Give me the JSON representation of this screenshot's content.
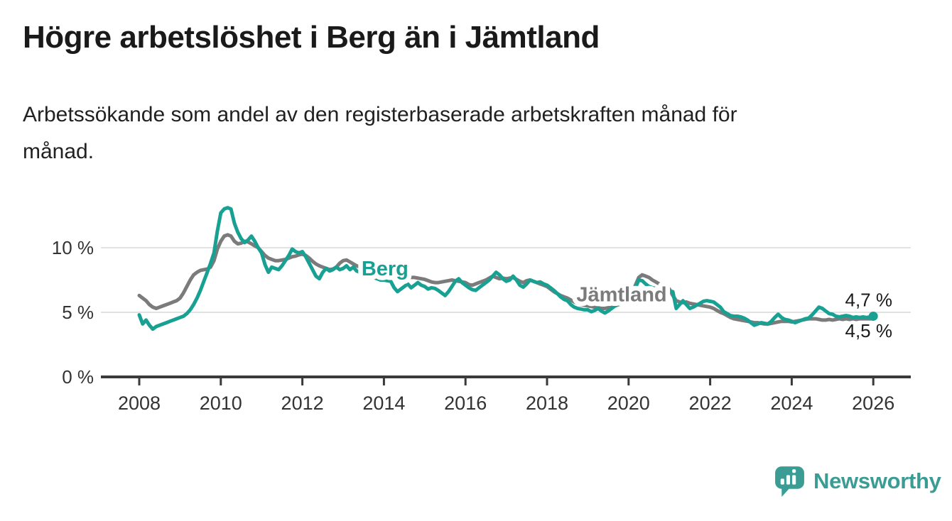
{
  "title": "Högre arbetslöshet i Berg än i Jämtland",
  "subtitle": "Arbetssökande som andel av den registerbaserade arbetskraften månad för månad.",
  "branding": {
    "logo_text": "Newsworthy",
    "logo_icon": "bar-chart-speech-bubble-icon",
    "logo_color": "#3b9c94"
  },
  "chart_data": {
    "type": "line",
    "title": "Högre arbetslöshet i Berg än i Jämtland",
    "subtitle": "Arbetssökande som andel av den registerbaserade arbetskraften månad för månad.",
    "x_unit": "year",
    "y_unit": "percent",
    "frequency": "monthly",
    "x_start_year": 2008,
    "x_end_year": 2026,
    "ylim": [
      0,
      13.8
    ],
    "grid": "horizontal",
    "x_tick_labels": [
      "2008",
      "2010",
      "2012",
      "2014",
      "2016",
      "2018",
      "2020",
      "2022",
      "2024",
      "2026"
    ],
    "y_ticks": [
      {
        "value": 0,
        "label": "0 %"
      },
      {
        "value": 5,
        "label": "5 %"
      },
      {
        "value": 10,
        "label": "10 %"
      }
    ],
    "colors": {
      "grid": "#d8d8d8",
      "axis": "#3a3a3a",
      "axis_text": "#333333",
      "annotation_text": "#1a1a1a"
    },
    "series": [
      {
        "name": "Jämtland",
        "key": "jamtland",
        "color": "#7b7b7b",
        "end_label": "4,5 %",
        "end_dot": false,
        "label_at": {
          "x": 2018.72,
          "y": 5.85
        },
        "values": [
          6.3,
          6.1,
          5.9,
          5.6,
          5.4,
          5.3,
          5.4,
          5.5,
          5.6,
          5.7,
          5.8,
          5.9,
          6.1,
          6.5,
          7.0,
          7.5,
          7.9,
          8.1,
          8.25,
          8.3,
          8.35,
          8.5,
          9.0,
          9.9,
          10.5,
          10.9,
          11.0,
          10.9,
          10.5,
          10.3,
          10.35,
          10.5,
          10.45,
          10.3,
          10.15,
          10.0,
          9.7,
          9.4,
          9.2,
          9.1,
          9.0,
          9.0,
          9.05,
          9.1,
          9.2,
          9.3,
          9.35,
          9.45,
          9.5,
          9.4,
          9.2,
          8.95,
          8.75,
          8.6,
          8.5,
          8.4,
          8.3,
          8.35,
          8.5,
          8.8,
          9.0,
          9.05,
          8.9,
          8.75,
          8.6,
          8.5,
          8.4,
          8.3,
          8.2,
          8.1,
          8.0,
          7.9,
          7.8,
          7.75,
          7.7,
          7.8,
          7.9,
          7.85,
          7.8,
          7.75,
          7.7,
          7.7,
          7.65,
          7.6,
          7.55,
          7.45,
          7.35,
          7.3,
          7.3,
          7.35,
          7.4,
          7.45,
          7.5,
          7.45,
          7.4,
          7.35,
          7.3,
          7.15,
          7.1,
          7.2,
          7.3,
          7.4,
          7.5,
          7.65,
          7.8,
          7.7,
          7.6,
          7.65,
          7.6,
          7.65,
          7.7,
          7.55,
          7.4,
          7.3,
          7.45,
          7.5,
          7.4,
          7.3,
          7.2,
          7.1,
          7.0,
          6.8,
          6.6,
          6.45,
          6.3,
          6.2,
          6.1,
          5.95,
          5.8,
          5.7,
          5.6,
          5.55,
          5.5,
          5.45,
          5.4,
          5.35,
          5.3,
          5.3,
          5.35,
          5.4,
          5.5,
          5.6,
          5.7,
          5.8,
          6.0,
          6.4,
          7.1,
          7.7,
          7.9,
          7.8,
          7.7,
          7.5,
          7.35,
          7.2,
          7.1,
          6.95,
          6.8,
          6.3,
          5.9,
          5.8,
          5.75,
          5.8,
          5.7,
          5.65,
          5.6,
          5.55,
          5.5,
          5.45,
          5.4,
          5.3,
          5.15,
          5.0,
          4.9,
          4.75,
          4.6,
          4.5,
          4.45,
          4.4,
          4.35,
          4.3,
          4.25,
          4.2,
          4.2,
          4.15,
          4.1,
          4.1,
          4.15,
          4.2,
          4.25,
          4.3,
          4.3,
          4.3,
          4.25,
          4.3,
          4.35,
          4.4,
          4.45,
          4.5,
          4.5,
          4.5,
          4.45,
          4.4,
          4.4,
          4.45,
          4.4,
          4.45,
          4.5,
          4.45,
          4.5,
          4.45,
          4.5,
          4.45,
          4.5,
          4.5,
          4.5,
          4.5,
          4.5
        ]
      },
      {
        "name": "Berg",
        "key": "berg",
        "color": "#18a193",
        "end_label": "4,7 %",
        "end_dot": true,
        "label_at": {
          "x": 2013.45,
          "y": 7.85
        },
        "values": [
          4.8,
          4.1,
          4.4,
          4.0,
          3.7,
          3.9,
          4.0,
          4.1,
          4.2,
          4.3,
          4.4,
          4.5,
          4.6,
          4.7,
          4.9,
          5.2,
          5.6,
          6.1,
          6.7,
          7.4,
          8.1,
          8.8,
          9.6,
          11.3,
          12.7,
          13.0,
          13.1,
          13.0,
          11.9,
          11.2,
          10.7,
          10.4,
          10.6,
          10.9,
          10.5,
          10.0,
          9.6,
          8.7,
          8.1,
          8.5,
          8.4,
          8.3,
          8.6,
          9.0,
          9.4,
          9.9,
          9.7,
          9.6,
          9.7,
          9.3,
          8.8,
          8.3,
          7.8,
          7.6,
          8.1,
          8.4,
          8.2,
          8.3,
          8.5,
          8.3,
          8.4,
          8.6,
          8.3,
          8.5,
          8.2,
          8.1,
          8.0,
          7.9,
          7.8,
          7.7,
          7.6,
          7.5,
          7.5,
          7.45,
          7.4,
          6.9,
          6.6,
          6.8,
          7.0,
          7.2,
          6.9,
          7.1,
          7.3,
          7.1,
          7.0,
          6.8,
          6.9,
          6.85,
          6.7,
          6.5,
          6.3,
          6.6,
          7.0,
          7.4,
          7.6,
          7.3,
          7.1,
          6.9,
          6.75,
          6.7,
          6.9,
          7.1,
          7.3,
          7.5,
          7.8,
          8.1,
          7.9,
          7.6,
          7.4,
          7.5,
          7.8,
          7.5,
          7.1,
          6.95,
          7.2,
          7.5,
          7.4,
          7.3,
          7.35,
          7.2,
          7.1,
          6.9,
          6.7,
          6.45,
          6.2,
          6.0,
          5.9,
          5.6,
          5.4,
          5.3,
          5.25,
          5.2,
          5.2,
          5.05,
          5.15,
          5.3,
          5.1,
          4.95,
          5.1,
          5.3,
          5.5,
          5.6,
          5.65,
          5.7,
          5.8,
          6.1,
          6.9,
          7.5,
          7.45,
          7.2,
          7.0,
          6.9,
          6.85,
          6.8,
          6.75,
          6.7,
          6.65,
          6.6,
          5.3,
          5.6,
          5.9,
          5.6,
          5.3,
          5.4,
          5.55,
          5.7,
          5.85,
          5.9,
          5.85,
          5.8,
          5.6,
          5.4,
          5.05,
          4.9,
          4.75,
          4.7,
          4.7,
          4.65,
          4.55,
          4.4,
          4.2,
          4.0,
          4.1,
          4.2,
          4.15,
          4.1,
          4.3,
          4.6,
          4.85,
          4.6,
          4.45,
          4.4,
          4.3,
          4.2,
          4.3,
          4.4,
          4.5,
          4.55,
          4.8,
          5.1,
          5.4,
          5.3,
          5.1,
          4.9,
          4.85,
          4.7,
          4.65,
          4.7,
          4.75,
          4.7,
          4.6,
          4.65,
          4.6,
          4.65,
          4.6,
          4.65,
          4.7
        ]
      }
    ]
  }
}
